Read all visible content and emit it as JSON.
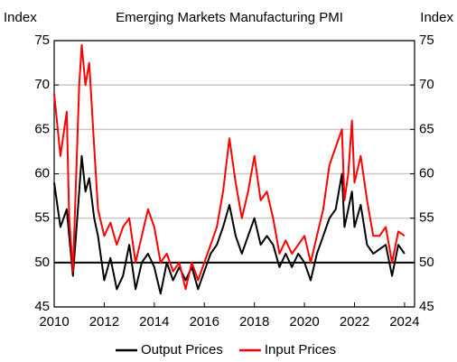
{
  "chart_data": {
    "type": "line",
    "title": "Emerging Markets Manufacturing PMI",
    "y_label": "Index",
    "y2_label": "Index",
    "x": [
      2010,
      2010.25,
      2010.5,
      2010.6,
      2010.75,
      2011,
      2011.1,
      2011.25,
      2011.4,
      2011.6,
      2011.75,
      2012,
      2012.25,
      2012.5,
      2012.75,
      2013,
      2013.25,
      2013.5,
      2013.75,
      2014,
      2014.25,
      2014.5,
      2014.75,
      2015,
      2015.25,
      2015.5,
      2015.75,
      2016,
      2016.25,
      2016.5,
      2016.75,
      2017,
      2017.25,
      2017.5,
      2017.75,
      2018,
      2018.25,
      2018.5,
      2018.75,
      2019,
      2019.25,
      2019.5,
      2019.75,
      2020,
      2020.25,
      2020.5,
      2020.75,
      2021,
      2021.25,
      2021.5,
      2021.6,
      2021.75,
      2021.9,
      2022,
      2022.25,
      2022.5,
      2022.75,
      2023,
      2023.25,
      2023.5,
      2023.75,
      2024
    ],
    "series": [
      {
        "name": "Output Prices",
        "color": "#000000",
        "values": [
          59,
          54,
          56,
          53,
          48.5,
          58,
          62,
          58,
          59.5,
          55,
          53,
          48,
          50.5,
          47,
          48.5,
          52,
          47,
          50,
          51,
          49.5,
          46.5,
          50,
          48,
          49.5,
          48,
          49.5,
          47,
          49,
          51,
          52,
          54,
          56.5,
          53,
          51,
          53,
          55,
          52,
          53,
          52,
          49.5,
          51,
          49.5,
          51,
          50,
          48,
          51,
          53,
          55,
          56,
          60,
          54,
          56,
          58,
          54,
          56.5,
          52,
          51,
          51.5,
          52,
          48.5,
          52,
          51
        ]
      },
      {
        "name": "Input Prices",
        "color": "#ff0000",
        "values": [
          69,
          62,
          67,
          55,
          49,
          70,
          74.5,
          70,
          72.5,
          63,
          56,
          53,
          54.5,
          52,
          54,
          55,
          50,
          53,
          56,
          54,
          50,
          51,
          49,
          50,
          47,
          50,
          48,
          50,
          52,
          54,
          58,
          64,
          59,
          55,
          58,
          62,
          57,
          58,
          55,
          51,
          52.5,
          51,
          52,
          53,
          50,
          53,
          56,
          61,
          63,
          65,
          57,
          60,
          66,
          59,
          62,
          57,
          53,
          53,
          54,
          50,
          53.5,
          53
        ]
      }
    ],
    "xlim": [
      2010,
      2024.4
    ],
    "xticks": [
      2010,
      2012,
      2014,
      2016,
      2018,
      2020,
      2022,
      2024
    ],
    "ylim": [
      45,
      75
    ],
    "yticks": [
      45,
      50,
      55,
      60,
      65,
      70,
      75
    ],
    "y2lim": [
      45,
      75
    ],
    "y2ticks": [
      45,
      50,
      55,
      60,
      65,
      70,
      75
    ],
    "grid": true,
    "reference_line": 50,
    "legend": "bottom"
  }
}
